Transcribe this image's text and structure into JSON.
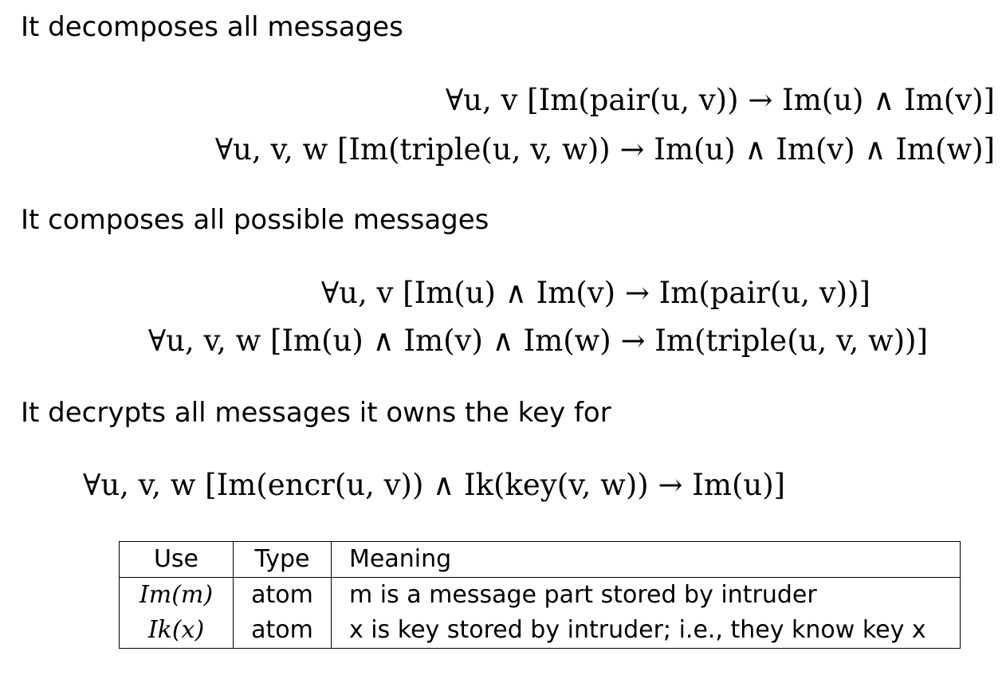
{
  "section_decompose": {
    "heading": "It decomposes all messages",
    "formula_pair": "∀u, v [Im(pair(u, v)) → Im(u) ∧ Im(v)]",
    "formula_triple": "∀u, v, w [Im(triple(u, v, w)) → Im(u) ∧ Im(v) ∧ Im(w)]"
  },
  "section_compose": {
    "heading": "It composes all possible messages",
    "formula_pair": "∀u, v [Im(u) ∧ Im(v) → Im(pair(u, v))]",
    "formula_triple": "∀u, v, w [Im(u) ∧ Im(v) ∧ Im(w) → Im(triple(u, v, w))]"
  },
  "section_decrypt": {
    "heading": "It decrypts all messages it owns the key for",
    "formula": "∀u, v, w [Im(encr(u, v)) ∧ Ik(key(v, w)) → Im(u)]"
  },
  "legend_table": {
    "headers": [
      "Use",
      "Type",
      "Meaning"
    ],
    "rows": [
      {
        "use": "Im(m)",
        "type": "atom",
        "meaning": "m is a message part stored by intruder"
      },
      {
        "use": "Ik(x)",
        "type": "atom",
        "meaning": "x is key stored by intruder; i.e., they know key x"
      }
    ]
  }
}
